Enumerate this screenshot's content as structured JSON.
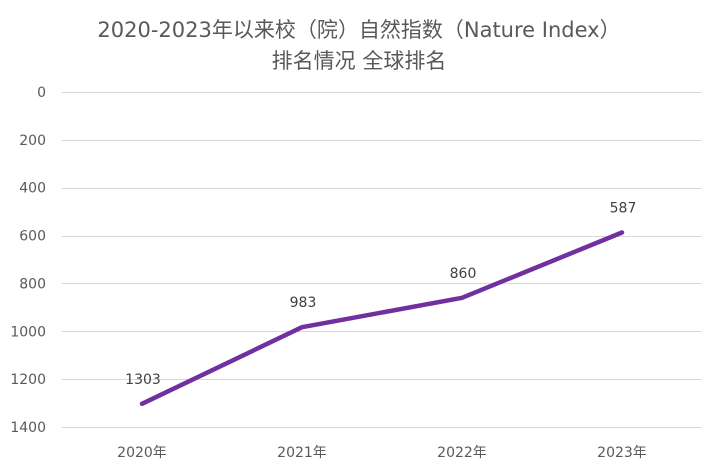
{
  "chart_data": {
    "type": "line",
    "title_line_1": "2020-2023年以来校（院）自然指数（Nature Index）",
    "title_line_2": "排名情况 全球排名",
    "categories": [
      "2020年",
      "2021年",
      "2022年",
      "2023年"
    ],
    "series": [
      {
        "name": "全球排名",
        "values": [
          1303,
          983,
          860,
          587
        ],
        "data_labels": [
          "1303",
          "983",
          "860",
          "587"
        ],
        "color": "#7030A0"
      }
    ],
    "y_axis": {
      "reversed": true,
      "ylim": [
        0,
        1400
      ],
      "ticks": [
        0,
        200,
        400,
        600,
        800,
        1000,
        1200,
        1400
      ],
      "tick_labels": [
        "0",
        "200",
        "400",
        "600",
        "800",
        "1000",
        "1200",
        "1400"
      ]
    },
    "grid": true,
    "legend": "none",
    "gridline_color": "#D9D9D9",
    "text_color": "#595959",
    "label_color": "#404040"
  }
}
